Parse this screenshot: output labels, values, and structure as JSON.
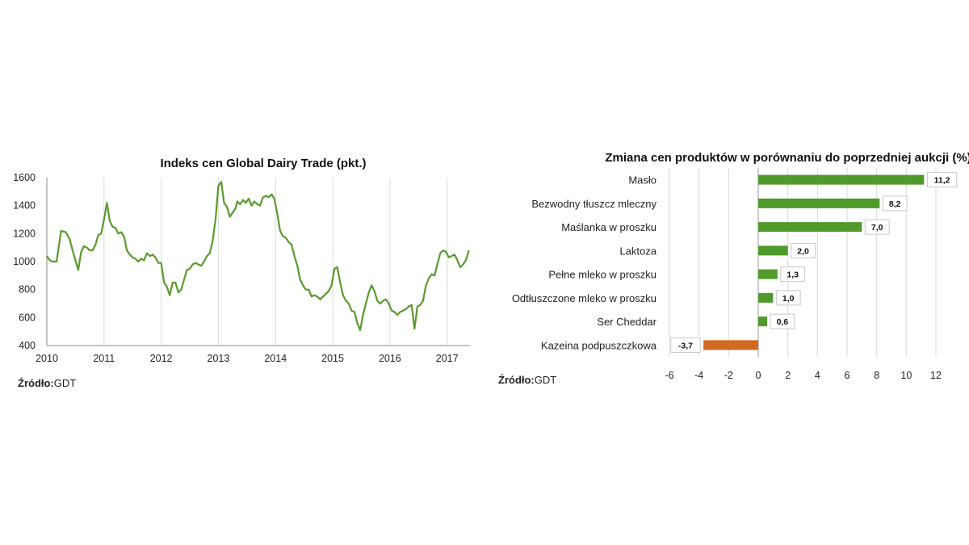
{
  "source_left": {
    "label": "Źródło:",
    "value": "GDT"
  },
  "source_right": {
    "label": "Źródło:",
    "value": "GDT"
  },
  "chart_data": [
    {
      "type": "line",
      "title": "Indeks cen Global Dairy Trade (pkt.)",
      "xlabel": "",
      "ylabel": "",
      "xlim": [
        2010,
        2017.4
      ],
      "ylim": [
        400,
        1600
      ],
      "x_ticks": [
        "2010",
        "2011",
        "2012",
        "2013",
        "2014",
        "2015",
        "2016",
        "2017"
      ],
      "y_ticks": [
        "400",
        "600",
        "800",
        "1000",
        "1200",
        "1400",
        "1600"
      ],
      "grid": "vertical",
      "color": "#5a9a2e",
      "x": [
        2010.0,
        2010.05,
        2010.1,
        2010.17,
        2010.25,
        2010.33,
        2010.4,
        2010.45,
        2010.5,
        2010.55,
        2010.6,
        2010.65,
        2010.7,
        2010.75,
        2010.8,
        2010.85,
        2010.9,
        2010.95,
        2011.0,
        2011.05,
        2011.1,
        2011.15,
        2011.2,
        2011.25,
        2011.3,
        2011.35,
        2011.4,
        2011.45,
        2011.5,
        2011.55,
        2011.6,
        2011.65,
        2011.7,
        2011.75,
        2011.8,
        2011.85,
        2011.9,
        2011.95,
        2012.0,
        2012.05,
        2012.1,
        2012.15,
        2012.2,
        2012.25,
        2012.3,
        2012.35,
        2012.4,
        2012.45,
        2012.5,
        2012.55,
        2012.6,
        2012.65,
        2012.7,
        2012.75,
        2012.8,
        2012.85,
        2012.9,
        2012.95,
        2013.0,
        2013.05,
        2013.1,
        2013.15,
        2013.2,
        2013.25,
        2013.3,
        2013.33,
        2013.38,
        2013.43,
        2013.48,
        2013.53,
        2013.58,
        2013.63,
        2013.68,
        2013.73,
        2013.78,
        2013.83,
        2013.88,
        2013.93,
        2013.98,
        2014.03,
        2014.08,
        2014.13,
        2014.18,
        2014.23,
        2014.28,
        2014.33,
        2014.38,
        2014.43,
        2014.48,
        2014.53,
        2014.58,
        2014.63,
        2014.68,
        2014.73,
        2014.78,
        2014.83,
        2014.88,
        2014.93,
        2014.98,
        2015.03,
        2015.08,
        2015.13,
        2015.18,
        2015.23,
        2015.28,
        2015.33,
        2015.38,
        2015.43,
        2015.48,
        2015.53,
        2015.58,
        2015.63,
        2015.68,
        2015.73,
        2015.78,
        2015.83,
        2015.88,
        2015.93,
        2015.98,
        2016.03,
        2016.08,
        2016.13,
        2016.18,
        2016.23,
        2016.28,
        2016.33,
        2016.38,
        2016.43,
        2016.48,
        2016.53,
        2016.58,
        2016.63,
        2016.68,
        2016.73,
        2016.78,
        2016.83,
        2016.88,
        2016.93,
        2016.98,
        2017.03,
        2017.08,
        2017.13,
        2017.18,
        2017.23,
        2017.28,
        2017.33,
        2017.38
      ],
      "y": [
        1040,
        1010,
        1000,
        1000,
        1220,
        1210,
        1160,
        1080,
        1010,
        940,
        1070,
        1110,
        1100,
        1080,
        1080,
        1120,
        1190,
        1200,
        1300,
        1420,
        1290,
        1250,
        1240,
        1200,
        1210,
        1180,
        1080,
        1050,
        1030,
        1020,
        1000,
        1020,
        1010,
        1060,
        1040,
        1050,
        1030,
        990,
        990,
        850,
        820,
        760,
        850,
        850,
        780,
        800,
        870,
        940,
        950,
        980,
        990,
        980,
        970,
        1000,
        1040,
        1060,
        1150,
        1300,
        1540,
        1570,
        1420,
        1390,
        1320,
        1350,
        1380,
        1430,
        1410,
        1440,
        1420,
        1450,
        1400,
        1430,
        1410,
        1400,
        1460,
        1470,
        1460,
        1480,
        1450,
        1340,
        1220,
        1180,
        1170,
        1140,
        1120,
        1040,
        970,
        870,
        830,
        800,
        800,
        750,
        760,
        750,
        730,
        750,
        770,
        790,
        830,
        950,
        960,
        850,
        760,
        720,
        700,
        650,
        640,
        560,
        510,
        620,
        700,
        780,
        830,
        790,
        720,
        700,
        720,
        730,
        700,
        650,
        640,
        620,
        640,
        650,
        660,
        680,
        690,
        520,
        680,
        690,
        720,
        830,
        880,
        910,
        900,
        980,
        1060,
        1080,
        1070,
        1030,
        1040,
        1050,
        1010,
        960,
        980,
        1010,
        1080
      ]
    },
    {
      "type": "bar",
      "orientation": "horizontal",
      "title": "Zmiana cen produktów w porównaniu do poprzedniej aukcji (%)",
      "xlabel": "",
      "ylabel": "",
      "xlim": [
        -6,
        12
      ],
      "x_ticks": [
        "-6",
        "-4",
        "-2",
        "0",
        "2",
        "4",
        "6",
        "8",
        "10",
        "12"
      ],
      "grid": "vertical",
      "categories": [
        "Masło",
        "Bezwodny tłuszcz mleczny",
        "Maślanka w proszku",
        "Laktoza",
        "Pełne mleko w proszku",
        "Odtłuszczone mleko w proszku",
        "Ser Cheddar",
        "Kazeina podpuszczkowa"
      ],
      "values": [
        11.2,
        8.2,
        7.0,
        2.0,
        1.3,
        1.0,
        0.6,
        -3.7
      ],
      "value_labels": [
        "11,2",
        "8,2",
        "7,0",
        "2,0",
        "1,3",
        "1,0",
        "0,6",
        "-3,7"
      ],
      "colors": {
        "positive": "#4f9a2b",
        "negative": "#d2691e"
      }
    }
  ]
}
